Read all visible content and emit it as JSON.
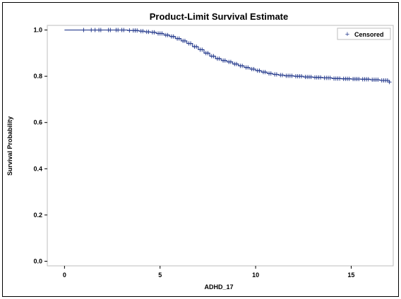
{
  "chart_data": {
    "type": "line",
    "title": "Product-Limit Survival Estimate",
    "xlabel": "ADHD_17",
    "ylabel": "Survival Probability",
    "xlim": [
      -0.9,
      17.2
    ],
    "ylim": [
      -0.02,
      1.02
    ],
    "xticks": [
      0,
      5,
      10,
      15
    ],
    "yticks": [
      0.0,
      0.2,
      0.4,
      0.6,
      0.8,
      1.0
    ],
    "xtick_labels": [
      "0",
      "5",
      "10",
      "15"
    ],
    "ytick_labels": [
      "0.0",
      "0.2",
      "0.4",
      "0.6",
      "0.8",
      "1.0"
    ],
    "grid": false,
    "legend": {
      "placement": "top-right",
      "entries": [
        {
          "marker": "+",
          "label": "Censored"
        }
      ]
    },
    "series": [
      {
        "kind": "step",
        "color": "#2a3f8f",
        "x": [
          0,
          3.3,
          3.9,
          4.2,
          4.5,
          4.8,
          5.2,
          5.5,
          5.8,
          6.1,
          6.4,
          6.7,
          7.0,
          7.3,
          7.6,
          7.9,
          8.2,
          8.5,
          8.8,
          9.1,
          9.4,
          9.7,
          10.0,
          10.3,
          10.6,
          10.9,
          11.2,
          11.5,
          12.0,
          12.5,
          13.0,
          13.5,
          14.0,
          14.5,
          15.0,
          15.5,
          16.0,
          16.5,
          17.0
        ],
        "y": [
          1.0,
          0.998,
          0.995,
          0.992,
          0.99,
          0.985,
          0.978,
          0.972,
          0.963,
          0.953,
          0.942,
          0.928,
          0.915,
          0.9,
          0.887,
          0.876,
          0.868,
          0.862,
          0.853,
          0.845,
          0.838,
          0.831,
          0.824,
          0.818,
          0.812,
          0.808,
          0.805,
          0.802,
          0.8,
          0.797,
          0.795,
          0.793,
          0.79,
          0.789,
          0.788,
          0.787,
          0.785,
          0.782,
          0.775
        ]
      }
    ],
    "censored": {
      "marker": "+",
      "x": [
        1.0,
        1.4,
        1.6,
        1.8,
        1.9,
        2.3,
        2.4,
        2.7,
        2.8,
        3.0,
        3.1,
        3.4,
        3.6,
        3.7,
        3.8,
        4.0,
        4.1,
        4.3,
        4.4,
        4.6,
        4.7,
        4.9,
        5.0,
        5.1,
        5.3,
        5.4,
        5.6,
        5.7,
        5.9,
        6.0,
        6.2,
        6.3,
        6.5,
        6.6,
        6.8,
        6.9,
        7.1,
        7.2,
        7.4,
        7.5,
        7.7,
        7.8,
        8.0,
        8.1,
        8.3,
        8.4,
        8.6,
        8.7,
        8.9,
        9.0,
        9.2,
        9.3,
        9.5,
        9.6,
        9.8,
        9.9,
        10.1,
        10.2,
        10.4,
        10.5,
        10.7,
        10.8,
        11.0,
        11.1,
        11.3,
        11.4,
        11.6,
        11.7,
        11.8,
        11.9,
        12.1,
        12.2,
        12.3,
        12.4,
        12.6,
        12.7,
        12.8,
        12.9,
        13.1,
        13.2,
        13.3,
        13.4,
        13.6,
        13.7,
        13.8,
        13.9,
        14.1,
        14.2,
        14.3,
        14.4,
        14.6,
        14.7,
        14.8,
        14.9,
        15.1,
        15.2,
        15.3,
        15.4,
        15.6,
        15.7,
        15.8,
        15.9,
        16.1,
        16.2,
        16.3,
        16.4,
        16.6,
        16.7,
        16.8,
        16.9,
        17.0
      ]
    }
  }
}
